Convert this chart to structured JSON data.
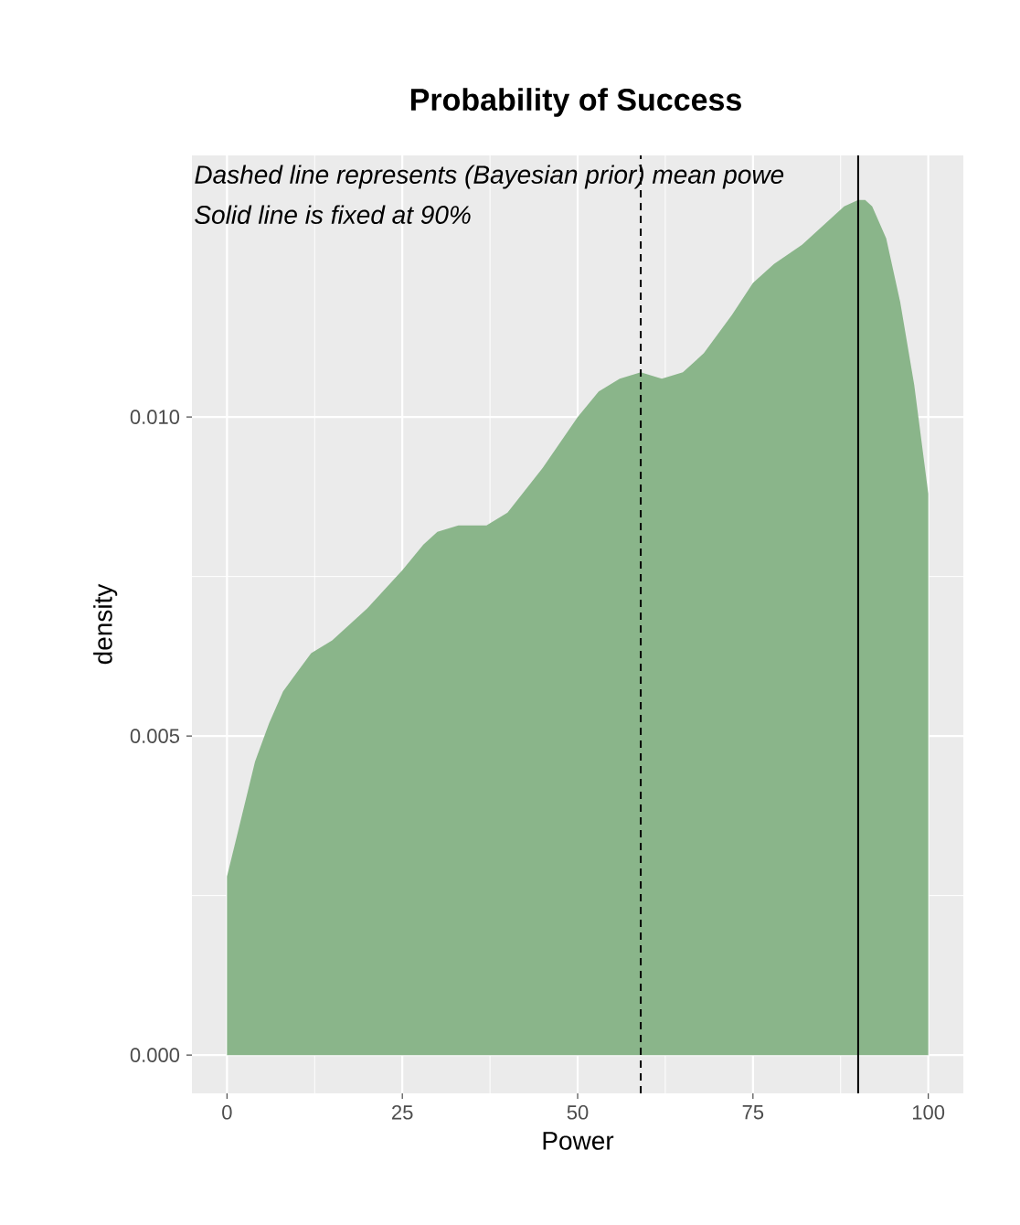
{
  "chart_data": {
    "type": "area",
    "title": "Probability of Success",
    "xlabel": "Power",
    "ylabel": "density",
    "x": [
      0,
      2,
      4,
      6,
      8,
      10,
      12,
      15,
      20,
      25,
      28,
      30,
      33,
      37,
      40,
      45,
      50,
      53,
      56,
      59,
      62,
      65,
      68,
      72,
      75,
      78,
      82,
      85,
      88,
      90,
      91,
      92,
      94,
      96,
      98,
      100
    ],
    "values": [
      0.0028,
      0.0037,
      0.0046,
      0.0052,
      0.0057,
      0.006,
      0.0063,
      0.0065,
      0.007,
      0.0076,
      0.008,
      0.0082,
      0.0083,
      0.0083,
      0.0085,
      0.0092,
      0.01,
      0.0104,
      0.0106,
      0.0107,
      0.0106,
      0.0107,
      0.011,
      0.0116,
      0.0121,
      0.0124,
      0.0127,
      0.013,
      0.0133,
      0.0134,
      0.0134,
      0.0133,
      0.0128,
      0.0118,
      0.0105,
      0.0088
    ],
    "color": "#8ab58a",
    "xlim": [
      -5,
      105
    ],
    "ylim": [
      -0.0006,
      0.0141
    ],
    "xticks": [
      0,
      25,
      50,
      75,
      100
    ],
    "yticks": [
      {
        "value": 0,
        "label": "0.000"
      },
      {
        "value": 0.005,
        "label": "0.005"
      },
      {
        "value": 0.01,
        "label": "0.010"
      }
    ],
    "grid": true,
    "ref_lines": [
      {
        "axis": "x",
        "value": 59,
        "color": "#000000",
        "line_style": "dashed"
      },
      {
        "axis": "x",
        "value": 90,
        "color": "#000000",
        "line_style": "solid"
      }
    ],
    "annotations": [
      "Dashed line represents (Bayesian prior) mean powe",
      "Solid line is fixed at 90%"
    ]
  }
}
